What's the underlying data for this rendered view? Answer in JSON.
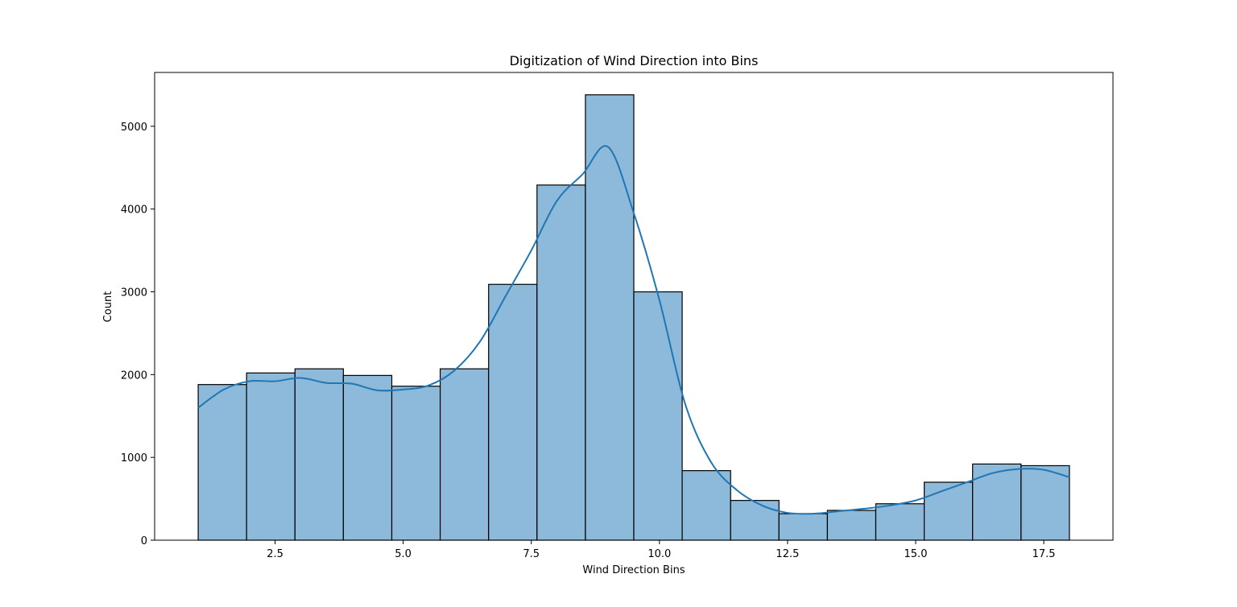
{
  "chart_data": {
    "type": "bar",
    "title": "Digitization of Wind Direction into Bins",
    "xlabel": "Wind Direction Bins",
    "ylabel": "Count",
    "xlim": [
      0.15,
      18.85
    ],
    "ylim": [
      0,
      5650
    ],
    "grid": false,
    "colors": {
      "bar_fill": "#8db9da",
      "bar_edge": "#000000",
      "kde_line": "#1f77b4"
    },
    "bin_edges": [
      1.0,
      1.944,
      2.889,
      3.833,
      4.778,
      5.722,
      6.667,
      7.611,
      8.556,
      9.5,
      10.444,
      11.389,
      12.333,
      13.278,
      14.222,
      15.167,
      16.111,
      17.056,
      18.0
    ],
    "values": [
      1880,
      2020,
      2070,
      1990,
      1860,
      2070,
      3090,
      4290,
      5380,
      3000,
      840,
      480,
      320,
      360,
      440,
      700,
      920,
      900
    ],
    "kde": {
      "x": [
        1.0,
        1.5,
        2.0,
        2.5,
        3.0,
        3.5,
        4.0,
        4.5,
        5.0,
        5.5,
        6.0,
        6.5,
        7.0,
        7.5,
        8.0,
        8.5,
        9.0,
        9.5,
        10.0,
        10.5,
        11.0,
        11.5,
        12.0,
        12.5,
        13.0,
        13.5,
        14.0,
        14.5,
        15.0,
        15.5,
        16.0,
        16.5,
        17.0,
        17.5,
        18.0
      ],
      "y": [
        1600,
        1820,
        1920,
        1920,
        1960,
        1900,
        1890,
        1810,
        1820,
        1870,
        2050,
        2400,
        2950,
        3500,
        4100,
        4420,
        4750,
        3950,
        2900,
        1650,
        950,
        610,
        420,
        330,
        320,
        350,
        380,
        420,
        480,
        590,
        700,
        810,
        860,
        850,
        760
      ]
    },
    "x_ticks": [
      "2.5",
      "5.0",
      "7.5",
      "10.0",
      "12.5",
      "15.0",
      "17.5"
    ],
    "y_ticks": [
      "0",
      "1000",
      "2000",
      "3000",
      "4000",
      "5000"
    ]
  }
}
